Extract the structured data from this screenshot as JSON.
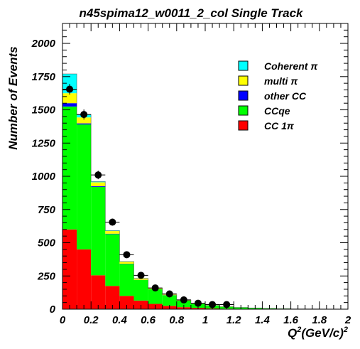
{
  "chart_data": {
    "type": "bar",
    "stacked": true,
    "title": "n45spima12_w0011_2_col Single Track",
    "ylabel": "Number of Events",
    "xlabel_base": "Q",
    "xlabel_sup": "2",
    "xlabel_rest": "(GeV/c)",
    "xlabel_sup2": "2",
    "xlim": [
      0,
      2
    ],
    "ylim": [
      0,
      2150
    ],
    "x_ticks": [
      0,
      0.2,
      0.4,
      0.6,
      0.8,
      1,
      1.2,
      1.4,
      1.6,
      1.8,
      2
    ],
    "x_tick_labels": [
      "0",
      "0.2",
      "0.4",
      "0.6",
      "0.8",
      "1",
      "1.2",
      "1.4",
      "1.6",
      "1.8",
      "2"
    ],
    "y_ticks": [
      0,
      250,
      500,
      750,
      1000,
      1250,
      1500,
      1750,
      2000
    ],
    "y_tick_labels": [
      "0",
      "250",
      "500",
      "750",
      "1000",
      "1250",
      "1500",
      "1750",
      "2000"
    ],
    "bin_edges": [
      0,
      0.1,
      0.2,
      0.3,
      0.4,
      0.5,
      0.6,
      0.7,
      0.8,
      0.9,
      1.0,
      1.1,
      1.2,
      1.3,
      1.4,
      1.5,
      1.6,
      1.7,
      1.8,
      1.9,
      2.0
    ],
    "series": [
      {
        "name": "CC 1π",
        "color": "#ff0000",
        "values": [
          600,
          450,
          255,
          175,
          100,
          65,
          40,
          25,
          15,
          10,
          6,
          4,
          3,
          2,
          1,
          1,
          0,
          0,
          0,
          0
        ]
      },
      {
        "name": "CCqe",
        "color": "#00ff00",
        "values": [
          925,
          940,
          665,
          390,
          240,
          155,
          110,
          80,
          50,
          30,
          22,
          14,
          10,
          7,
          5,
          3,
          2,
          2,
          1,
          1
        ]
      },
      {
        "name": "other CC",
        "color": "#0000ff",
        "values": [
          25,
          8,
          5,
          3,
          2,
          1,
          1,
          1,
          0,
          0,
          0,
          0,
          0,
          0,
          0,
          0,
          0,
          0,
          0,
          0
        ]
      },
      {
        "name": "multi π",
        "color": "#ffff00",
        "values": [
          75,
          45,
          30,
          20,
          15,
          10,
          6,
          4,
          2,
          1,
          1,
          1,
          0,
          0,
          0,
          0,
          0,
          0,
          0,
          0
        ]
      },
      {
        "name": "Coherent π",
        "color": "#00ffff",
        "values": [
          145,
          20,
          5,
          3,
          2,
          1,
          1,
          0,
          0,
          0,
          0,
          0,
          0,
          0,
          0,
          0,
          0,
          0,
          0,
          0
        ]
      }
    ],
    "data_points": {
      "x": [
        0.05,
        0.15,
        0.25,
        0.35,
        0.45,
        0.55,
        0.65,
        0.75,
        0.85,
        0.95,
        1.05,
        1.15
      ],
      "y": [
        1655,
        1465,
        1010,
        655,
        410,
        255,
        160,
        115,
        70,
        45,
        35,
        35
      ],
      "err": [
        40,
        38,
        32,
        26,
        20,
        16,
        13,
        11,
        9,
        7,
        6,
        6
      ]
    },
    "legend_placement": "top-right",
    "legend_order": [
      "Coherent π",
      "multi π",
      "other CC",
      "CCqe",
      "CC 1π"
    ],
    "grid": false
  }
}
